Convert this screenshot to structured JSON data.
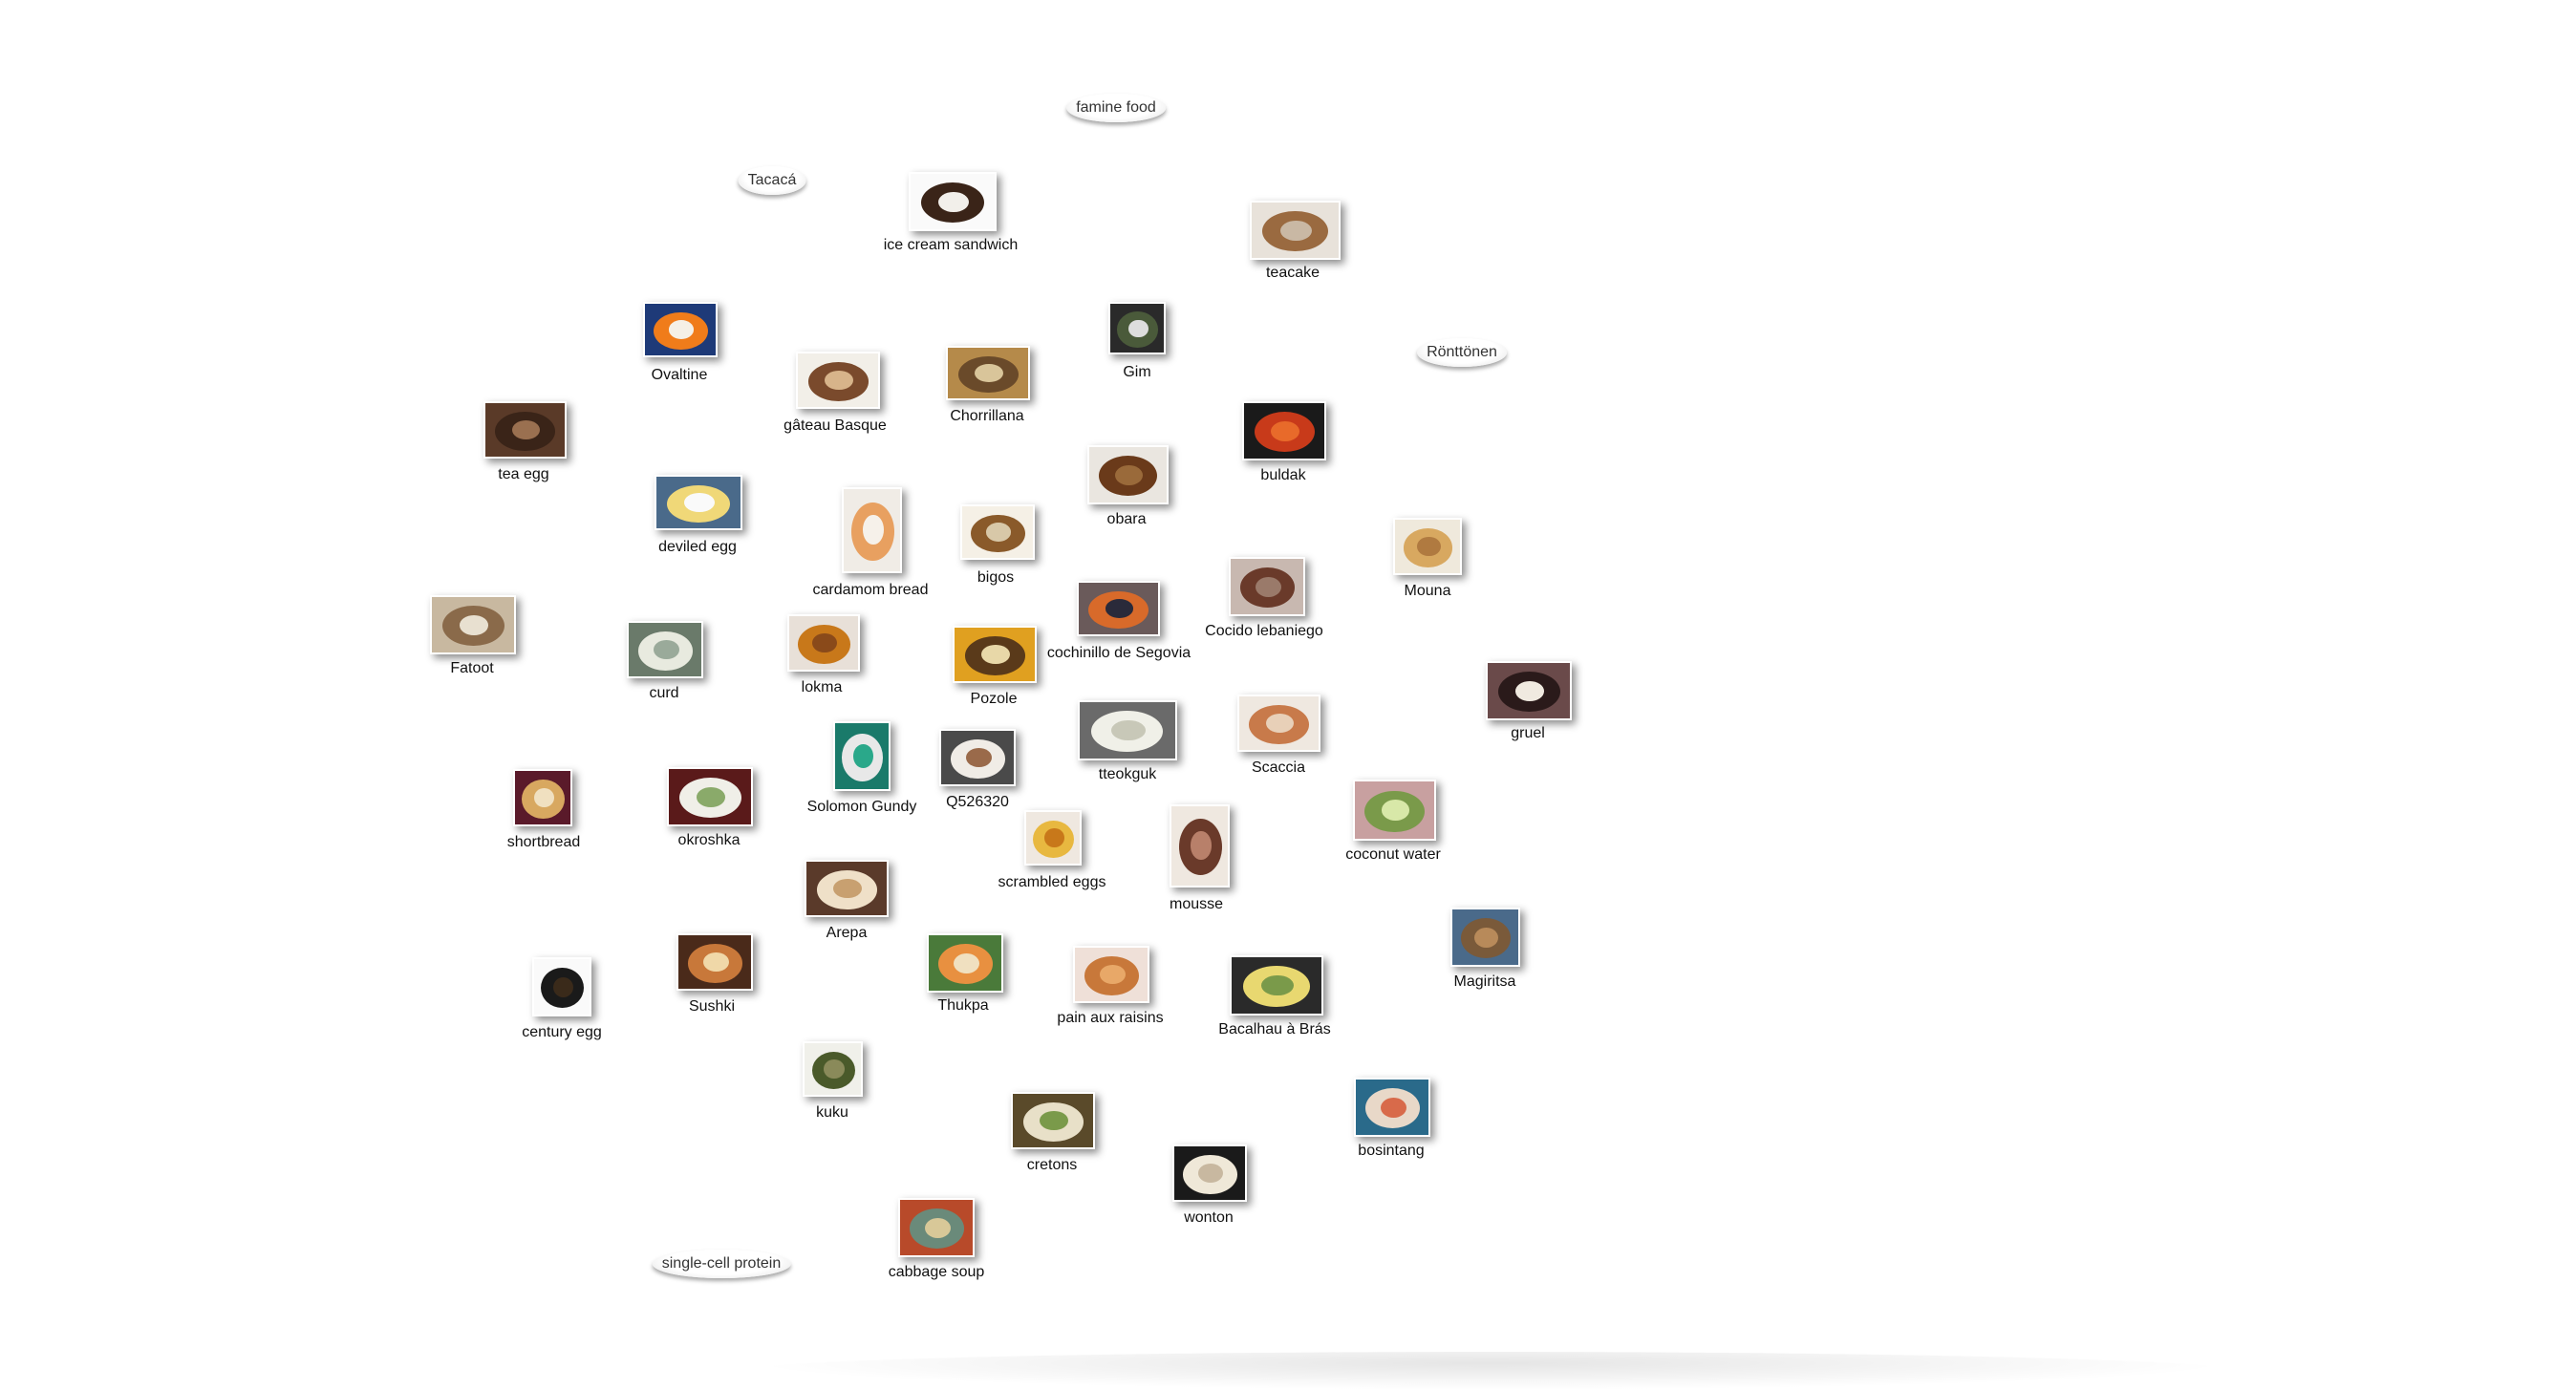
{
  "concepts": [
    {
      "label": "famine food"
    },
    {
      "label": "Tacacá"
    },
    {
      "label": "Rönttönen"
    },
    {
      "label": "single-cell protein"
    }
  ],
  "items": [
    {
      "label": "ice cream sandwich",
      "colors": [
        "#fafafa",
        "#3a2418",
        "#f2efea"
      ]
    },
    {
      "label": "teacake",
      "colors": [
        "#e8e2da",
        "#9a6a40",
        "#c9b8a4"
      ]
    },
    {
      "label": "Ovaltine",
      "colors": [
        "#1e3a78",
        "#f07c1a",
        "#f5f0e6"
      ]
    },
    {
      "label": "Gim",
      "colors": [
        "#2a2a2a",
        "#4a5a3a",
        "#dddddd"
      ]
    },
    {
      "label": "gâteau Basque",
      "colors": [
        "#f2efe8",
        "#7a4a2c",
        "#d7b48a"
      ]
    },
    {
      "label": "Chorrillana",
      "colors": [
        "#b58a4a",
        "#6a4a2a",
        "#d9c59a"
      ]
    },
    {
      "label": "tea egg",
      "colors": [
        "#5a3a28",
        "#3a2418",
        "#9a7050"
      ]
    },
    {
      "label": "buldak",
      "colors": [
        "#1a1a1a",
        "#c83a1a",
        "#e86a2a"
      ]
    },
    {
      "label": "deviled egg",
      "colors": [
        "#4a6a8a",
        "#f0d878",
        "#fafafa"
      ]
    },
    {
      "label": "obara",
      "colors": [
        "#eae6e0",
        "#6a3a1a",
        "#9a6a3a"
      ]
    },
    {
      "label": "cardamom bread",
      "colors": [
        "#f0ece6",
        "#e8a060",
        "#f6f1ea"
      ]
    },
    {
      "label": "bigos",
      "colors": [
        "#f5f0e6",
        "#8a5a2a",
        "#d8c8a8"
      ]
    },
    {
      "label": "Mouna",
      "colors": [
        "#efe9dc",
        "#d8a860",
        "#b07a40"
      ]
    },
    {
      "label": "Fatoot",
      "colors": [
        "#c8b8a0",
        "#8a6a4a",
        "#e8e0d0"
      ]
    },
    {
      "label": "Cocido lebaniego",
      "colors": [
        "#c8b8b0",
        "#6a3a2a",
        "#9a7a6a"
      ]
    },
    {
      "label": "cochinillo de Segovia",
      "colors": [
        "#6a5a5a",
        "#d86a2a",
        "#2a2a3a"
      ]
    },
    {
      "label": "curd",
      "colors": [
        "#6a7a6a",
        "#e8eadf",
        "#9aaa9a"
      ]
    },
    {
      "label": "lokma",
      "colors": [
        "#e8e0d8",
        "#c8781a",
        "#8a4a1a"
      ]
    },
    {
      "label": "Pozole",
      "colors": [
        "#e0a020",
        "#5a3a1a",
        "#e8d8a8"
      ]
    },
    {
      "label": "gruel",
      "colors": [
        "#6a4a4a",
        "#2a1a1a",
        "#f0eae0"
      ]
    },
    {
      "label": "tteokguk",
      "colors": [
        "#6a6a6a",
        "#f0f0e8",
        "#c8c8b8"
      ]
    },
    {
      "label": "Scaccia",
      "colors": [
        "#efe8e0",
        "#c87a4a",
        "#e8d0b8"
      ]
    },
    {
      "label": "Solomon Gundy",
      "colors": [
        "#1a7a6a",
        "#e8e8e8",
        "#2aa88a"
      ]
    },
    {
      "label": "Q526320",
      "colors": [
        "#4a4a4a",
        "#f0ece6",
        "#9a6a4a"
      ]
    },
    {
      "label": "shortbread",
      "colors": [
        "#5a1a2a",
        "#d8a860",
        "#f0e0c0"
      ]
    },
    {
      "label": "okroshka",
      "colors": [
        "#5a1a1a",
        "#f0efe8",
        "#8aaa6a"
      ]
    },
    {
      "label": "coconut water",
      "colors": [
        "#c8a0a0",
        "#7a9a4a",
        "#d8e8a8"
      ]
    },
    {
      "label": "scrambled eggs",
      "colors": [
        "#efe8e0",
        "#e8b840",
        "#c8781a"
      ]
    },
    {
      "label": "mousse",
      "colors": [
        "#efe8e0",
        "#6a3a2a",
        "#b8806a"
      ]
    },
    {
      "label": "Arepa",
      "colors": [
        "#5a3a2a",
        "#efe0c8",
        "#c8a070"
      ]
    },
    {
      "label": "Magiritsa",
      "colors": [
        "#4a6a8a",
        "#7a5a3a",
        "#b88a5a"
      ]
    },
    {
      "label": "Thukpa",
      "colors": [
        "#4a7a3a",
        "#e89040",
        "#f0e0c0"
      ]
    },
    {
      "label": "Sushki",
      "colors": [
        "#4a2a1a",
        "#c8783a",
        "#f0d8a8"
      ]
    },
    {
      "label": "century egg",
      "colors": [
        "#fafafa",
        "#1a1a1a",
        "#3a2a1a"
      ]
    },
    {
      "label": "pain aux raisins",
      "colors": [
        "#efe0d8",
        "#c8783a",
        "#e8a868"
      ]
    },
    {
      "label": "Bacalhau à Brás",
      "colors": [
        "#2a2a2a",
        "#e8d870",
        "#7a9a4a"
      ]
    },
    {
      "label": "kuku",
      "colors": [
        "#f0f0ea",
        "#4a5a2a",
        "#8a8a5a"
      ]
    },
    {
      "label": "bosintang",
      "colors": [
        "#2a6a8a",
        "#e8d8c8",
        "#d86a4a"
      ]
    },
    {
      "label": "cretons",
      "colors": [
        "#5a4a2a",
        "#e8e0c8",
        "#7a9a4a"
      ]
    },
    {
      "label": "wonton",
      "colors": [
        "#1a1a1a",
        "#efe8d8",
        "#c8b8a0"
      ]
    },
    {
      "label": "cabbage soup",
      "colors": [
        "#b84a2a",
        "#6a8a7a",
        "#d8c898"
      ]
    }
  ]
}
